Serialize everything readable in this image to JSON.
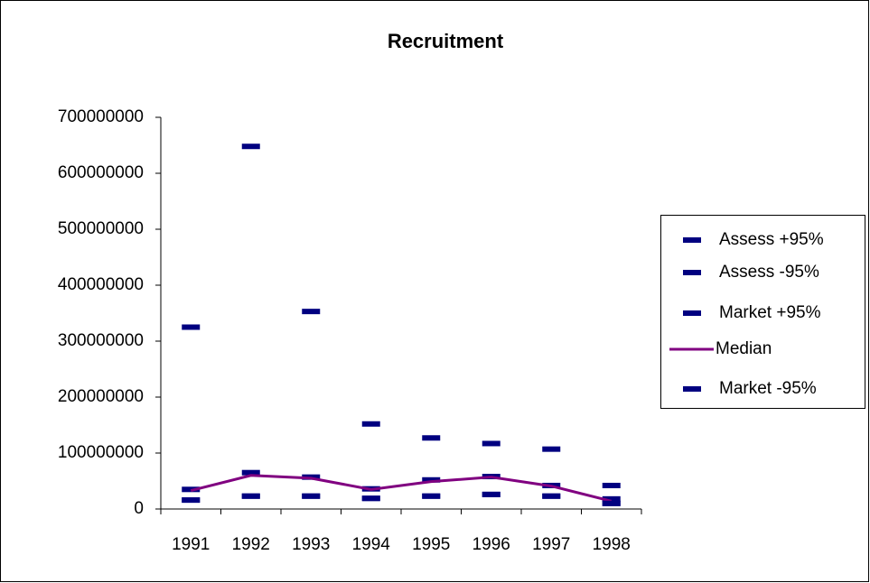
{
  "chart_data": {
    "type": "line",
    "title": "Recruitment",
    "categories": [
      "1991",
      "1992",
      "1993",
      "1994",
      "1995",
      "1996",
      "1997",
      "1998"
    ],
    "series": [
      {
        "name": "Assess +95%",
        "color": "#000080",
        "style": "marker",
        "values": [
          325000000,
          648000000,
          353000000,
          152000000,
          127000000,
          117000000,
          107000000,
          42000000
        ]
      },
      {
        "name": "Assess -95%",
        "color": "#000080",
        "style": "marker",
        "values": [
          16000000,
          23000000,
          23000000,
          19000000,
          23000000,
          26000000,
          23000000,
          10000000
        ]
      },
      {
        "name": "Market +95%",
        "color": "#000080",
        "style": "marker",
        "values": [
          35000000,
          65000000,
          57000000,
          36000000,
          52000000,
          58000000,
          42000000,
          18000000
        ]
      },
      {
        "name": "Median",
        "color": "#800080",
        "style": "line",
        "values": [
          33000000,
          60000000,
          55000000,
          35000000,
          49000000,
          57000000,
          41000000,
          14000000
        ]
      },
      {
        "name": "Market -95%",
        "color": "#000080",
        "style": "marker",
        "values": [
          16000000,
          23000000,
          23000000,
          19000000,
          23000000,
          26000000,
          23000000,
          10000000
        ]
      }
    ],
    "ylim": [
      0,
      700000000
    ],
    "yticks": [
      0,
      100000000,
      200000000,
      300000000,
      400000000,
      500000000,
      600000000,
      700000000
    ],
    "grid": false
  }
}
